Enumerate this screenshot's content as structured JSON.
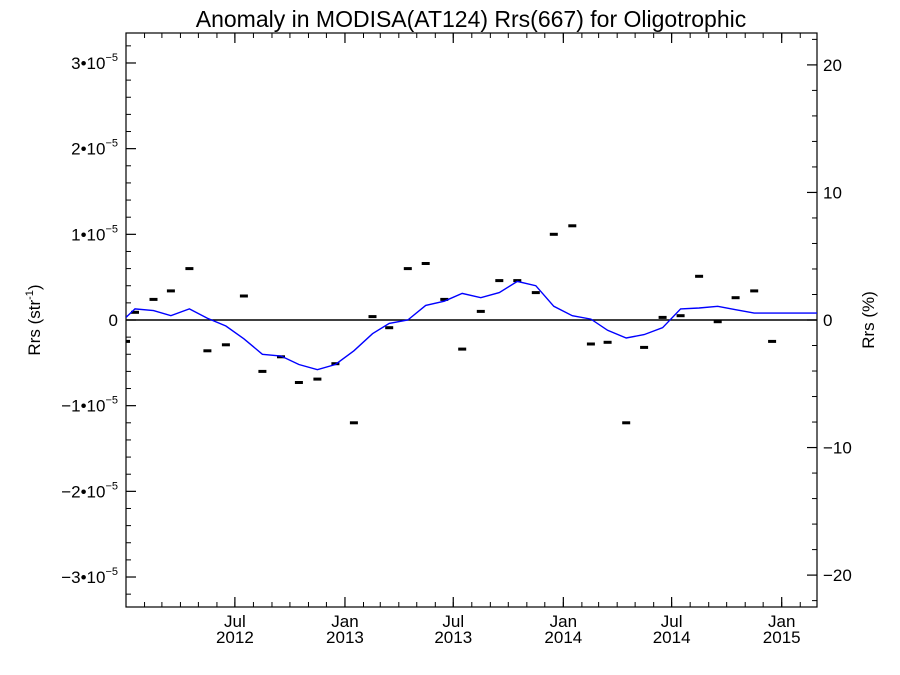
{
  "chart_data": {
    "type": "line",
    "title": "Anomaly in MODISA(AT124) Rrs(667) for Oligotrophic",
    "ylabel_left": "Rrs (str",
    "ylabel_left_exp": "-1",
    "ylabel_left_close": ")",
    "ylabel_right": "Rrs (%)",
    "ylim": [
      -3.35e-05,
      3.35e-05
    ],
    "ylim_right": [
      -22.5,
      22.5
    ],
    "xlim": [
      "2012-01-01",
      "2015-03-01"
    ],
    "x_ticks": [
      {
        "date": "2012-07-01",
        "month": "Jul",
        "year": "2012"
      },
      {
        "date": "2013-01-01",
        "month": "Jan",
        "year": "2013"
      },
      {
        "date": "2013-07-01",
        "month": "Jul",
        "year": "2013"
      },
      {
        "date": "2014-01-01",
        "month": "Jan",
        "year": "2014"
      },
      {
        "date": "2014-07-01",
        "month": "Jul",
        "year": "2014"
      },
      {
        "date": "2015-01-01",
        "month": "Jan",
        "year": "2015"
      }
    ],
    "y_ticks_left": [
      {
        "value": 3e-05,
        "mant": "3•10",
        "exp": "−5"
      },
      {
        "value": 2e-05,
        "mant": "2•10",
        "exp": "−5"
      },
      {
        "value": 1e-05,
        "mant": "1•10",
        "exp": "−5"
      },
      {
        "value": 0,
        "mant": "0",
        "exp": ""
      },
      {
        "value": -1e-05,
        "mant": "−1•10",
        "exp": "−5"
      },
      {
        "value": -2e-05,
        "mant": "−2•10",
        "exp": "−5"
      },
      {
        "value": -3e-05,
        "mant": "−3•10",
        "exp": "−5"
      }
    ],
    "y_ticks_right": [
      {
        "value": 20,
        "label": "20"
      },
      {
        "value": 10,
        "label": "10"
      },
      {
        "value": 0,
        "label": "0"
      },
      {
        "value": -10,
        "label": "−10"
      },
      {
        "value": -20,
        "label": "−20"
      }
    ],
    "zero_line": true,
    "series": [
      {
        "kind": "points",
        "color": "#000000",
        "x": [
          "2012-01-01",
          "2012-01-16",
          "2012-02-16",
          "2012-03-16",
          "2012-04-16",
          "2012-05-16",
          "2012-06-16",
          "2012-07-16",
          "2012-08-16",
          "2012-09-16",
          "2012-10-16",
          "2012-11-16",
          "2012-12-16",
          "2013-01-16",
          "2013-02-16",
          "2013-03-16",
          "2013-04-16",
          "2013-05-16",
          "2013-06-16",
          "2013-07-16",
          "2013-08-16",
          "2013-09-16",
          "2013-10-16",
          "2013-11-16",
          "2013-12-16",
          "2014-01-16",
          "2014-02-16",
          "2014-03-16",
          "2014-04-16",
          "2014-05-16",
          "2014-06-16",
          "2014-07-16",
          "2014-08-16",
          "2014-09-16",
          "2014-10-16",
          "2014-11-16",
          "2014-12-16",
          "2015-01-16",
          "2015-02-16"
        ],
        "y": [
          -2.5e-06,
          9e-07,
          2.4e-06,
          3.4e-06,
          6e-06,
          -3.6e-06,
          -2.9e-06,
          2.8e-06,
          -6e-06,
          -4.3e-06,
          -7.3e-06,
          -6.9e-06,
          -5.1e-06,
          -1.2e-05,
          4e-07,
          -9e-07,
          6e-06,
          6.6e-06,
          2.4e-06,
          -3.4e-06,
          1e-06,
          4.6e-06,
          4.6e-06,
          3.2e-06,
          1e-05,
          1.1e-05,
          -2.8e-06,
          -2.6e-06,
          -1.2e-05,
          -3.2e-06,
          3e-07,
          5e-07,
          5.1e-06,
          -2e-07,
          2.6e-06,
          3.4e-06,
          -2.5e-06,
          0,
          0
        ]
      },
      {
        "kind": "line",
        "color": "#0000ff",
        "x": [
          "2012-01-01",
          "2012-01-16",
          "2012-02-16",
          "2012-03-16",
          "2012-04-16",
          "2012-05-16",
          "2012-06-16",
          "2012-07-16",
          "2012-08-16",
          "2012-09-16",
          "2012-10-16",
          "2012-11-16",
          "2012-12-16",
          "2013-01-16",
          "2013-02-16",
          "2013-03-16",
          "2013-04-16",
          "2013-05-16",
          "2013-06-16",
          "2013-07-16",
          "2013-08-16",
          "2013-09-16",
          "2013-10-16",
          "2013-11-16",
          "2013-12-16",
          "2014-01-16",
          "2014-02-16",
          "2014-03-16",
          "2014-04-16",
          "2014-05-16",
          "2014-06-16",
          "2014-07-16",
          "2014-08-16",
          "2014-09-16",
          "2014-10-16",
          "2014-11-16",
          "2014-12-16",
          "2015-01-16",
          "2015-02-16",
          "2015-03-01"
        ],
        "y": [
          3e-07,
          1.3e-06,
          1.1e-06,
          5e-07,
          1.3e-06,
          2e-07,
          -7e-07,
          -2.2e-06,
          -4e-06,
          -4.2e-06,
          -5.2e-06,
          -5.8e-06,
          -5.2e-06,
          -3.6e-06,
          -1.6e-06,
          -4e-07,
          0,
          1.7e-06,
          2.2e-06,
          3.1e-06,
          2.6e-06,
          3.2e-06,
          4.5e-06,
          4e-06,
          1.6e-06,
          5e-07,
          1e-07,
          -1.2e-06,
          -2.1e-06,
          -1.7e-06,
          -9e-07,
          1.3e-06,
          1.4e-06,
          1.6e-06,
          1.2e-06,
          8e-07,
          8e-07,
          8e-07,
          8e-07,
          8e-07
        ]
      }
    ]
  }
}
